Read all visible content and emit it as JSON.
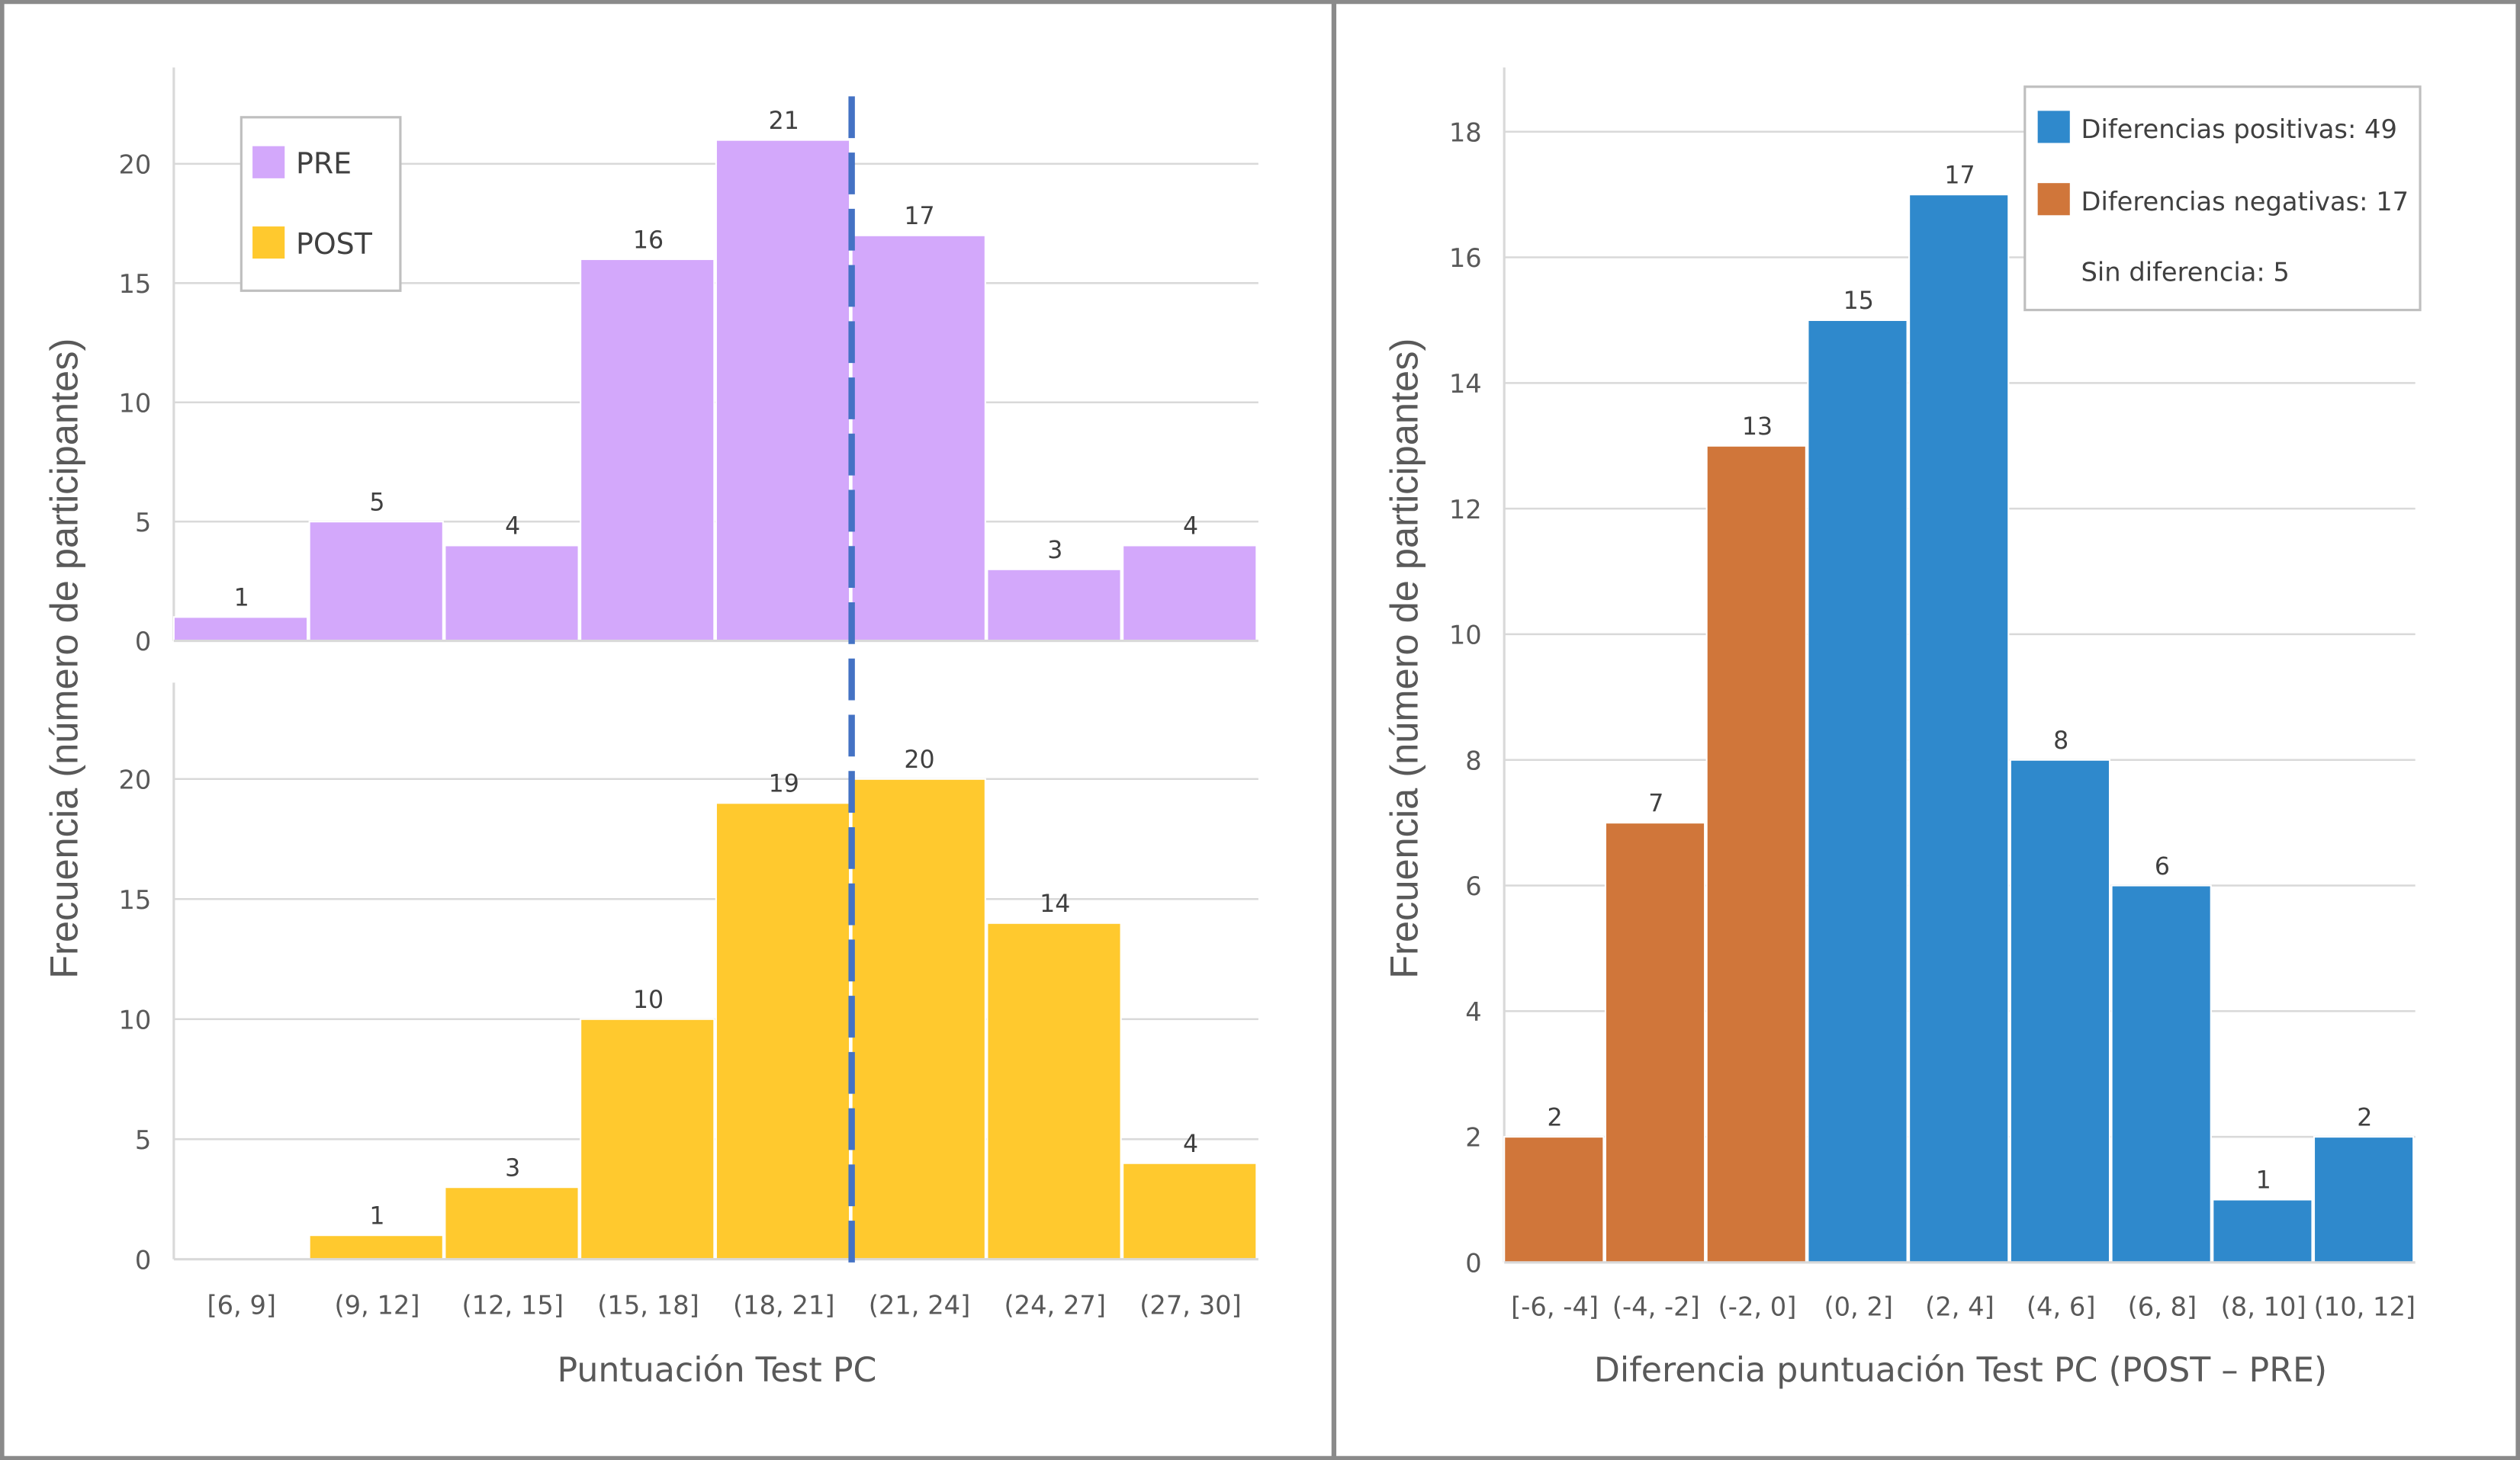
{
  "colors": {
    "pre": "#D3A8FB",
    "post": "#FFC92E",
    "negative": "#D0763A",
    "positive": "#2F89CC",
    "mean_line": "#4472C4"
  },
  "chart_data": [
    {
      "type": "bar",
      "subtype": "histogram",
      "panels": [
        "PRE",
        "POST"
      ],
      "categories": [
        "[6, 9]",
        "(9, 12]",
        "(12, 15]",
        "(15, 18]",
        "(18, 21]",
        "(21, 24]",
        "(24, 27]",
        "(27, 30]"
      ],
      "series": [
        {
          "name": "PRE",
          "values": [
            1,
            5,
            4,
            16,
            21,
            17,
            3,
            4
          ]
        },
        {
          "name": "POST",
          "values": [
            0,
            1,
            3,
            10,
            19,
            20,
            14,
            4
          ]
        }
      ],
      "xlabel": "Puntuación Test PC",
      "ylabel": "Frecuencia (número de participantes)",
      "yticks": [
        0,
        5,
        10,
        15,
        20
      ],
      "ylim": [
        0,
        24
      ],
      "reference_line": {
        "style": "dashed",
        "x": 21
      },
      "grid": true,
      "legend": "top-left"
    },
    {
      "type": "bar",
      "subtype": "histogram",
      "categories": [
        "[-6, -4]",
        "(-4, -2]",
        "(-2, 0]",
        "(0, 2]",
        "(2, 4]",
        "(4, 6]",
        "(6, 8]",
        "(8, 10]",
        "(10, 12]"
      ],
      "values": [
        2,
        7,
        13,
        15,
        17,
        8,
        6,
        1,
        2
      ],
      "bar_groups": [
        "negative",
        "negative",
        "negative",
        "positive",
        "positive",
        "positive",
        "positive",
        "positive",
        "positive"
      ],
      "legend_entries": [
        "Diferencias positivas: 49",
        "Diferencias negativas: 17",
        "Sin diferencia: 5"
      ],
      "xlabel": "Diferencia puntuación Test PC (POST – PRE)",
      "ylabel": "Frecuencia (número de participantes)",
      "yticks": [
        0,
        2,
        4,
        6,
        8,
        10,
        12,
        14,
        16,
        18
      ],
      "ylim": [
        0,
        19
      ],
      "grid": true,
      "legend": "top-right"
    }
  ]
}
